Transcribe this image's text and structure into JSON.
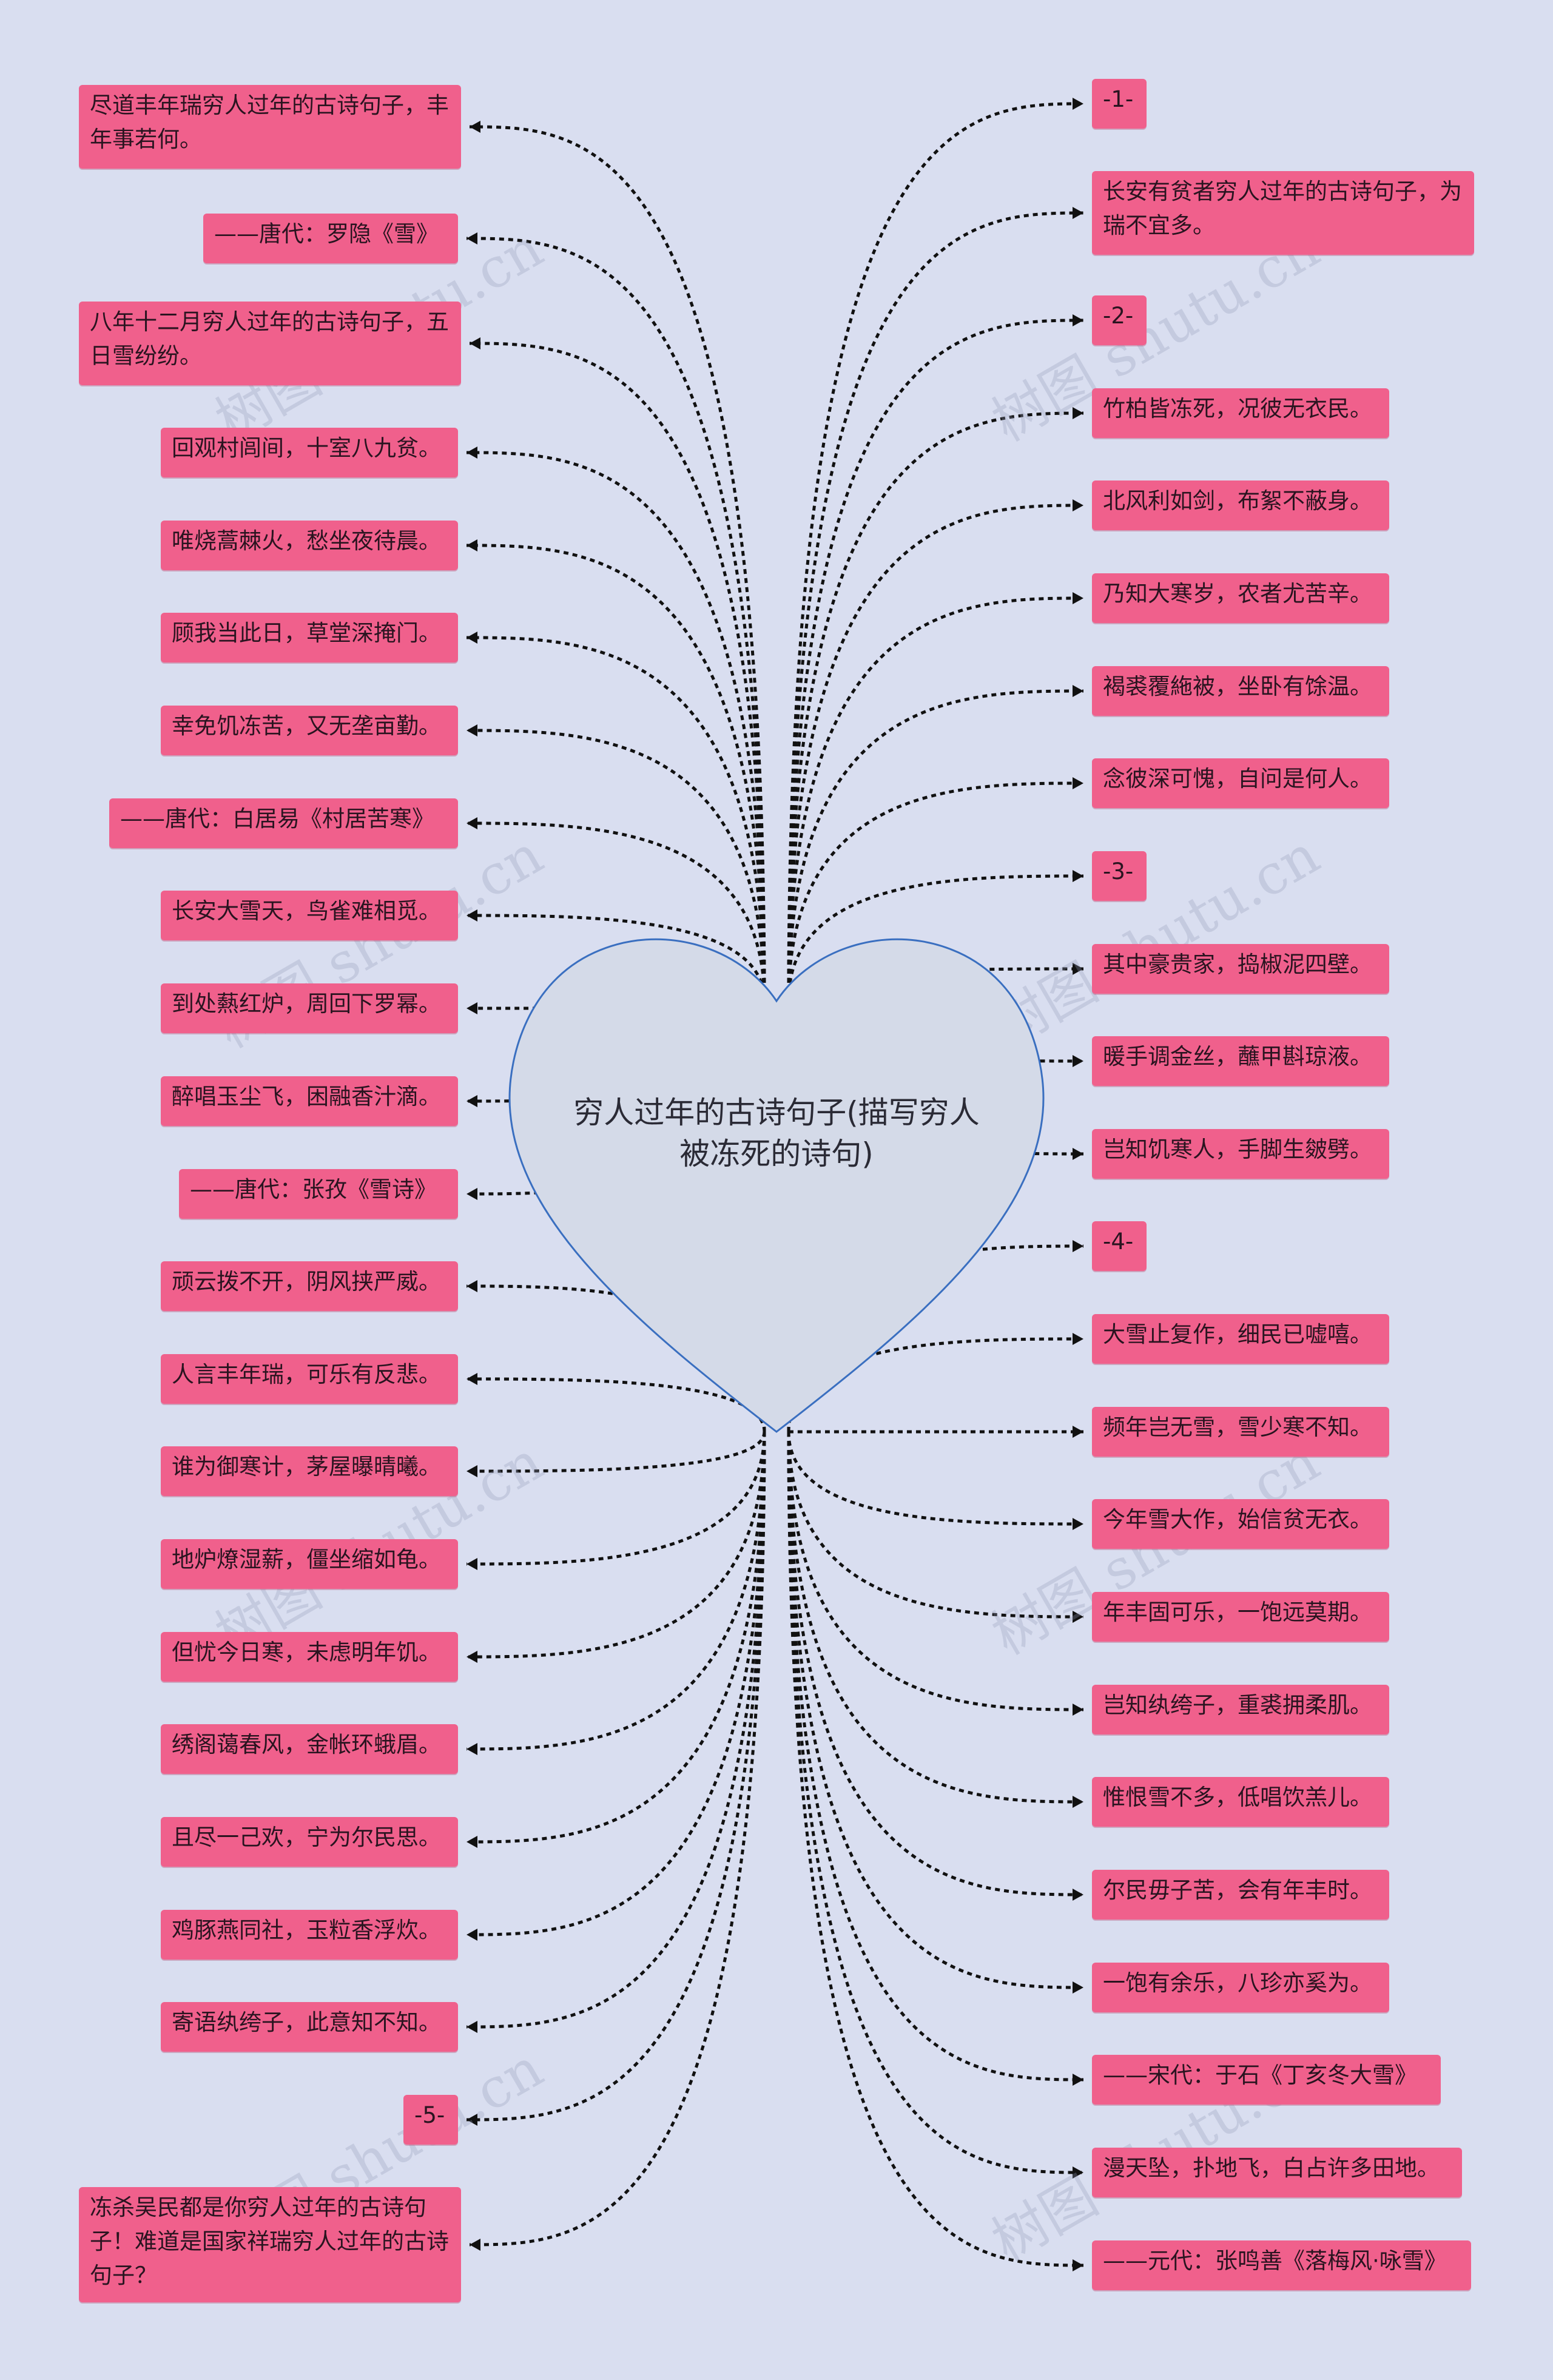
{
  "center": {
    "text": "穷人过年的古诗句子(描写穷人被冻死的诗句)"
  },
  "watermark": "树图 shutu.cn",
  "left_nodes": [
    "尽道丰年瑞穷人过年的古诗句子，丰年事若何。",
    "——唐代：罗隐《雪》",
    "八年十二月穷人过年的古诗句子，五日雪纷纷。",
    "回观村闾间，十室八九贫。",
    "唯烧蒿棘火，愁坐夜待晨。",
    "顾我当此日，草堂深掩门。",
    "幸免饥冻苦，又无垄亩勤。",
    "——唐代：白居易《村居苦寒》",
    "长安大雪天，鸟雀难相觅。",
    "到处爇红炉，周回下罗幂。",
    "醉唱玉尘飞，困融香汁滴。",
    "——唐代：张孜《雪诗》",
    "顽云拨不开，阴风挟严威。",
    "人言丰年瑞，可乐有反悲。",
    "谁为御寒计，茅屋曝晴曦。",
    "地炉燎湿薪，僵坐缩如龟。",
    "但忧今日寒，未虑明年饥。",
    "绣阁蔼春风，金帐环蛾眉。",
    "且尽一己欢，宁为尔民思。",
    "鸡豚燕同社，玉粒香浮炊。",
    "寄语纨绔子，此意知不知。",
    "-5-",
    "冻杀吴民都是你穷人过年的古诗句子！难道是国家祥瑞穷人过年的古诗句子？"
  ],
  "right_nodes": [
    "-1-",
    "长安有贫者穷人过年的古诗句子，为瑞不宜多。",
    "-2-",
    "竹柏皆冻死，况彼无衣民。",
    "北风利如剑，布絮不蔽身。",
    "乃知大寒岁，农者尤苦辛。",
    "褐裘覆絁被，坐卧有馀温。",
    "念彼深可愧，自问是何人。",
    "-3-",
    "其中豪贵家，捣椒泥四壁。",
    "暖手调金丝，蘸甲斟琼液。",
    "岂知饥寒人，手脚生皴劈。",
    "-4-",
    "大雪止复作，细民已嘘嘻。",
    "频年岂无雪，雪少寒不知。",
    "今年雪大作，始信贫无衣。",
    "年丰固可乐，一饱远莫期。",
    "岂知纨绔子，重裘拥柔肌。",
    "惟恨雪不多，低唱饮羔儿。",
    "尔民毋子苦，会有年丰时。",
    "一饱有余乐，八珍亦奚为。",
    "——宋代：于石《丁亥冬大雪》",
    "漫天坠，扑地飞，白占许多田地。",
    "——元代：张鸣善《落梅风·咏雪》"
  ],
  "colors": {
    "node": "#f0608c",
    "background": "#d9def0",
    "heart_fill": "#d4dae8",
    "heart_stroke": "#3a6fc0"
  }
}
